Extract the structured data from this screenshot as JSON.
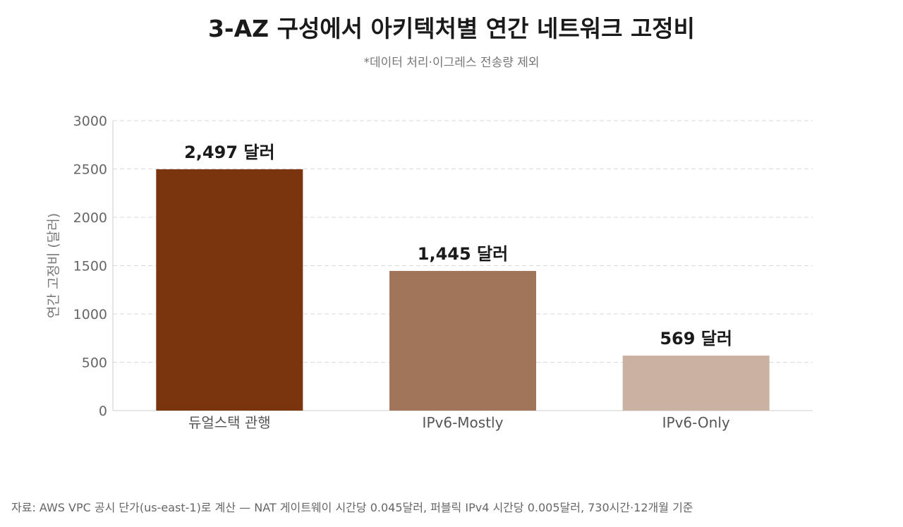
{
  "title": "3-AZ 구성에서 아키텍처별 연간 네트워크 고정비",
  "subtitle": "*데이터 처리·이그레스 전송량 제외",
  "source": "자료: AWS VPC 공시 단가(us-east-1)로 계산 — NAT 게이트웨이 시간당 0.045달러, 퍼블릭 IPv4 시간당 0.005달러, 730시간·12개월 기준",
  "chart_data": {
    "type": "bar",
    "categories": [
      "듀얼스택 관행",
      "IPv6-Mostly",
      "IPv6-Only"
    ],
    "values": [
      2497,
      1445,
      569
    ],
    "data_labels": [
      "2,497 달러",
      "1,445 달러",
      "569 달러"
    ],
    "colors": [
      "#7a350e",
      "#a0755a",
      "#cbb1a1"
    ],
    "ylabel": "연간 고정비 (달러)",
    "ylim": [
      0,
      3000
    ],
    "yticks": [
      "0",
      "500",
      "1000",
      "1500",
      "2000",
      "2500",
      "3000"
    ],
    "grid": true,
    "legend": "none"
  }
}
